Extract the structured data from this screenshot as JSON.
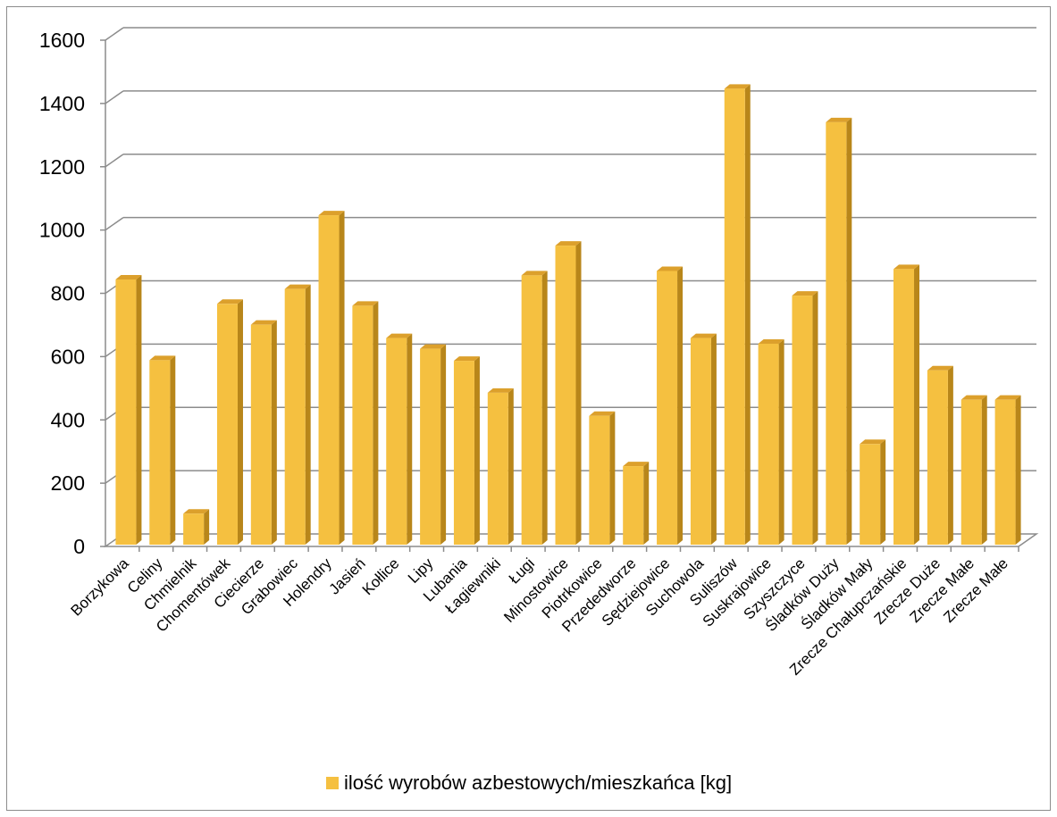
{
  "chart_data": {
    "type": "bar",
    "title": "",
    "xlabel": "",
    "ylabel": "",
    "ylim": [
      0,
      1600
    ],
    "yticks": [
      0,
      200,
      400,
      600,
      800,
      1000,
      1200,
      1400,
      1600
    ],
    "grid": true,
    "legend_position": "bottom",
    "categories": [
      "Borzykowa",
      "Celiny",
      "Chmielnik",
      "Chomentówek",
      "Ciecierze",
      "Grabowiec",
      "Holendry",
      "Jasień",
      "Kołlice",
      "Lipy",
      "Lubania",
      "Łagiewniki",
      "Ługi",
      "Minostowice",
      "Piotrkowice",
      "Przededworze",
      "Sędziejowice",
      "Suchowola",
      "Suliszów",
      "Suskrajowice",
      "Szyszczyce",
      "Śladków Duży",
      "Śladków Mały",
      "Zrecze Chałupczańskie",
      "Zrecze Duże",
      "Zrecze Małe",
      "Zrecze Małe"
    ],
    "series": [
      {
        "name": "ilość wyrobów azbestowych/mieszkańca [kg]",
        "values": [
          855,
          600,
          115,
          778,
          712,
          825,
          1058,
          772,
          670,
          636,
          598,
          497,
          868,
          962,
          424,
          265,
          882,
          670,
          1458,
          652,
          804,
          1352,
          335,
          888,
          568,
          475,
          475
        ]
      }
    ],
    "colors": {
      "bar_front": "#f5c040",
      "bar_side": "#b8861a",
      "bar_top": "#dca02c",
      "grid": "#8c8c8c",
      "wall": "#ffffff"
    }
  }
}
